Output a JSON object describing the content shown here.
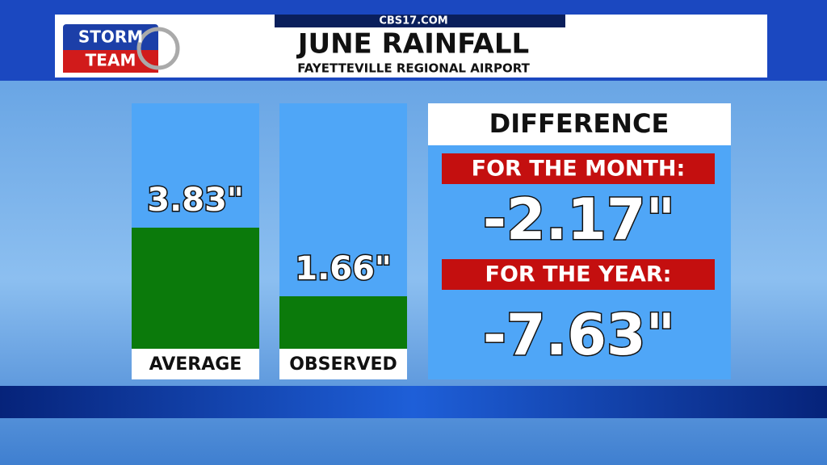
{
  "header": {
    "site": "CBS17.COM",
    "logo": [
      "STORM",
      "TEAM"
    ],
    "title": "JUNE RAINFALL",
    "subtitle": "FAYETTEVILLE REGIONAL AIRPORT"
  },
  "chart_data": {
    "type": "bar",
    "categories": [
      "AVERAGE",
      "OBSERVED"
    ],
    "values": [
      3.83,
      1.66
    ],
    "value_labels": [
      "3.83\"",
      "1.66\""
    ],
    "color": "#0b7a0b"
  },
  "difference": {
    "title": "DIFFERENCE",
    "rows": [
      {
        "label": "FOR THE MONTH:",
        "text": "-2.17\""
      },
      {
        "label": "FOR THE YEAR:",
        "text": "-7.63\""
      }
    ]
  }
}
